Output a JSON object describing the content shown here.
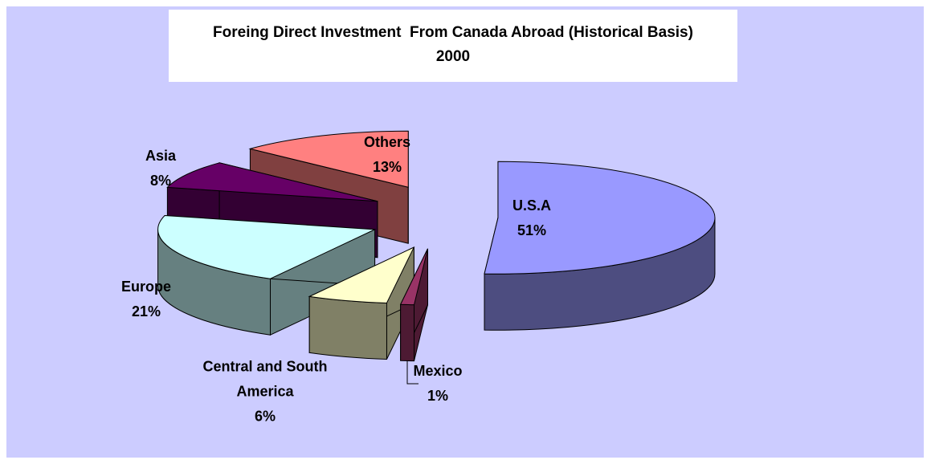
{
  "chart_data": {
    "type": "pie",
    "title": "Foreing Direct Investment  From Canada Abroad (Historical Basis)",
    "subtitle": "2000",
    "categories": [
      "U.S.A",
      "Mexico",
      "Central and South America",
      "Europe",
      "Asia",
      "Others"
    ],
    "values": [
      51,
      1,
      6,
      21,
      8,
      13
    ],
    "value_labels": [
      "51%",
      "1%",
      "6%",
      "21%",
      "8%",
      "13%"
    ],
    "colors": [
      "#9999ff",
      "#993366",
      "#ffffcc",
      "#ccffff",
      "#660066",
      "#ff8080"
    ]
  }
}
